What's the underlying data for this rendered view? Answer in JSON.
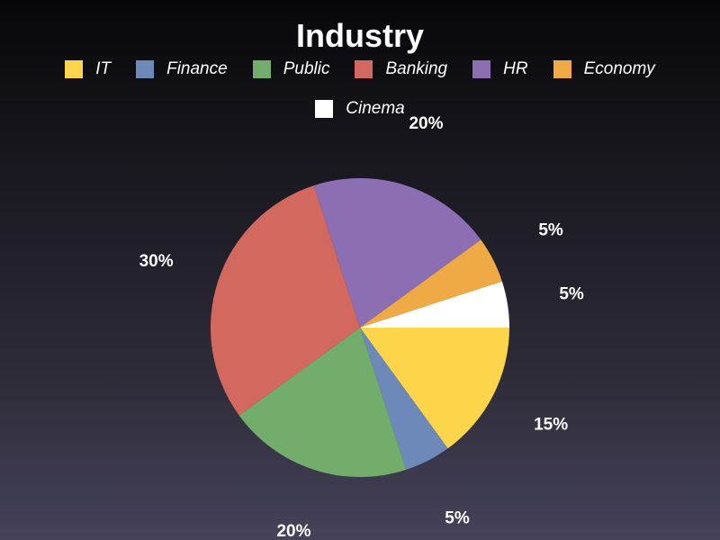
{
  "chart_data": {
    "type": "pie",
    "title": "Industry",
    "legend_position": "top",
    "categories": [
      "IT",
      "Finance",
      "Public",
      "Banking",
      "HR",
      "Economy",
      "Cinema"
    ],
    "values": [
      15,
      5,
      20,
      30,
      20,
      5,
      5
    ],
    "value_labels": [
      "15%",
      "5%",
      "20%",
      "30%",
      "20%",
      "5%",
      "5%"
    ],
    "colors": [
      "#fdd54b",
      "#6c89b9",
      "#72ad6c",
      "#d3685e",
      "#8c6fb2",
      "#f0aa45",
      "#ffffff"
    ]
  }
}
